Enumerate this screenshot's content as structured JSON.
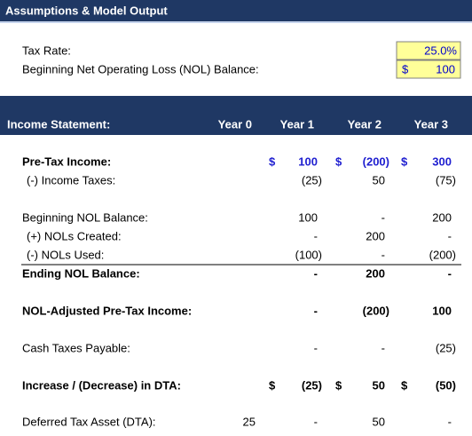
{
  "header": {
    "title": "Assumptions & Model Output"
  },
  "assumptions": [
    {
      "label": "Tax Rate:",
      "value": "25.0%"
    },
    {
      "label": "Beginning Net Operating Loss (NOL) Balance:",
      "currency": "$",
      "value": "100"
    }
  ],
  "table": {
    "columns": [
      "Income Statement:",
      "Year 0",
      "Year 1",
      "Year 2",
      "Year 3"
    ],
    "rows": [
      {
        "label": "Pre-Tax Income:",
        "bold": true,
        "color": "#1f1fd0",
        "currency": [
          null,
          "$",
          "$",
          "$"
        ],
        "cells": [
          null,
          "100",
          "(200)",
          "300"
        ]
      },
      {
        "label": "(-) Income Taxes:",
        "cells": [
          null,
          "(25)",
          "50",
          "(75)"
        ]
      },
      {
        "label": "Beginning NOL Balance:",
        "cells": [
          null,
          "100",
          "-",
          "200"
        ]
      },
      {
        "label": "(+) NOLs Created:",
        "cells": [
          null,
          "-",
          "200",
          "-"
        ]
      },
      {
        "label": "(-) NOLs Used:",
        "underline": true,
        "cells": [
          null,
          "(100)",
          "-",
          "(200)"
        ]
      },
      {
        "label": "Ending NOL Balance:",
        "bold": true,
        "cells": [
          null,
          "-",
          "200",
          "-"
        ]
      },
      {
        "label": "NOL-Adjusted Pre-Tax Income:",
        "bold": true,
        "cells": [
          null,
          "-",
          "(200)",
          "100"
        ]
      },
      {
        "label": "Cash Taxes Payable:",
        "cells": [
          null,
          "-",
          "-",
          "(25)"
        ]
      },
      {
        "label": "Increase / (Decrease) in DTA:",
        "bold": true,
        "currency": [
          null,
          "$",
          "$",
          "$"
        ],
        "cells": [
          null,
          "(25)",
          "50",
          "(50)"
        ]
      },
      {
        "label": "Deferred Tax Asset (DTA):",
        "cells": [
          "25",
          "-",
          "50",
          "-"
        ]
      }
    ]
  }
}
